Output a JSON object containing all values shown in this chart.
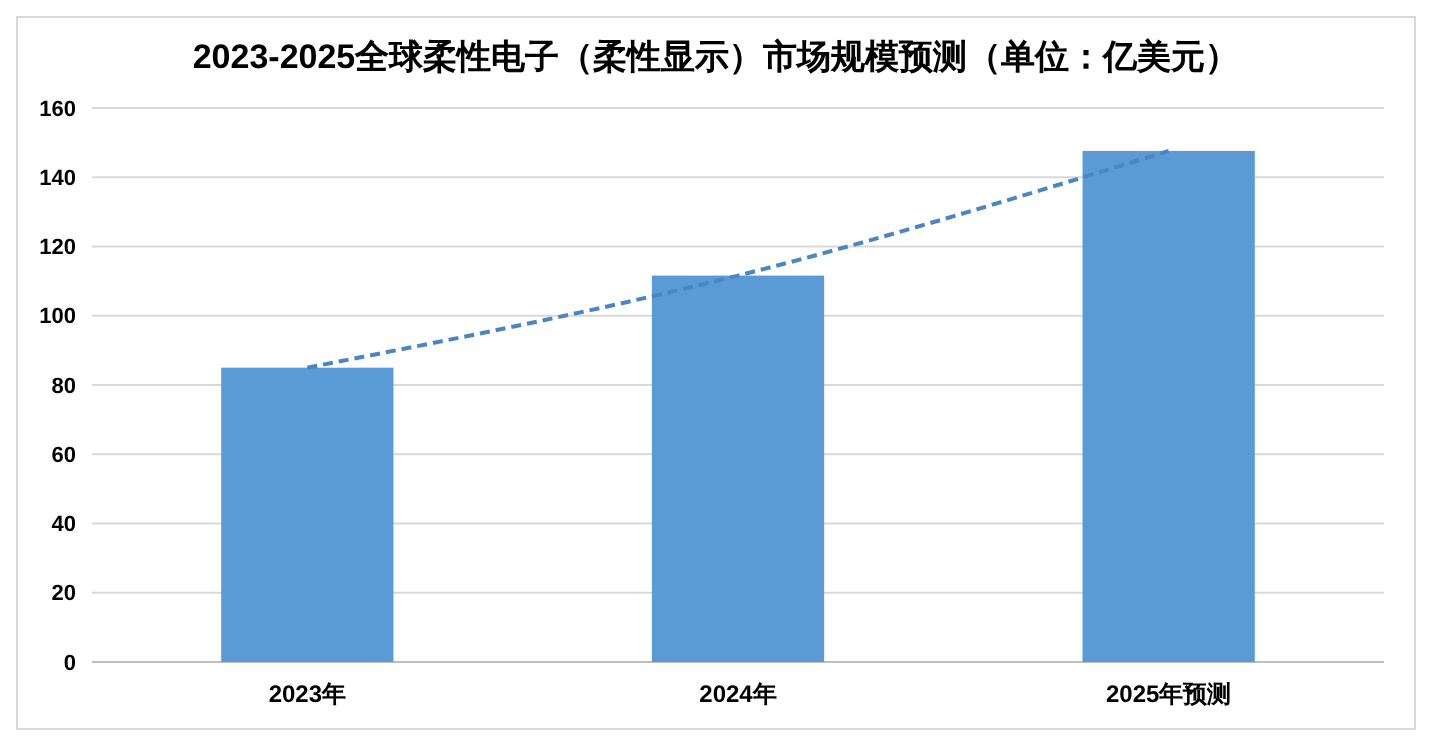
{
  "chart_data": {
    "type": "bar",
    "title": "2023-2025全球柔性电子（柔性显示）市场规模预测（单位：亿美元）",
    "categories": [
      "2023年",
      "2024年",
      "2025年预测"
    ],
    "series": [
      {
        "color": "#5b9bd5",
        "values": [
          85,
          111.6,
          147.6
        ]
      },
      {
        "type": "line",
        "color": "#4a86c5",
        "values": [
          85,
          111.6,
          147.6
        ],
        "line_style": "dashed",
        "marker": "none"
      }
    ],
    "ylim": [
      0,
      160
    ],
    "yticks": [
      0,
      20,
      40,
      60,
      80,
      100,
      120,
      140,
      160
    ],
    "grid": "y"
  }
}
